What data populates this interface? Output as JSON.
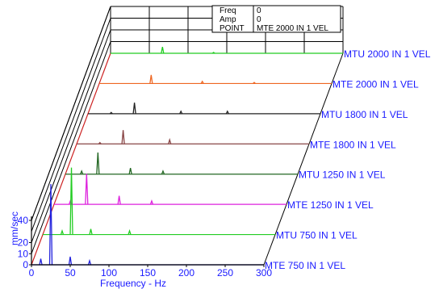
{
  "info_box": {
    "rows": [
      {
        "key": "Freq",
        "value": "0"
      },
      {
        "key": "Amp",
        "value": "0"
      },
      {
        "key": "POINT",
        "value": "MTE 2000 IN 1 VEL"
      }
    ]
  },
  "chart_data": {
    "type": "line",
    "style": "waterfall",
    "title": "",
    "xlabel": "Frequency - Hz",
    "ylabel": "mm/sec",
    "xlim": [
      0,
      300
    ],
    "ylim": [
      0,
      40
    ],
    "x_ticks": [
      "0",
      "50",
      "100",
      "150",
      "200",
      "250",
      "300"
    ],
    "y_ticks": [
      "0",
      "10",
      "20",
      "40"
    ],
    "grid": true,
    "series": [
      {
        "name": "MTE 750 IN 1 VEL",
        "color": "#2222dd",
        "peaks": [
          {
            "x": 25,
            "y": 40
          },
          {
            "x": 12,
            "y": 3
          },
          {
            "x": 50,
            "y": 4
          },
          {
            "x": 75,
            "y": 2
          }
        ]
      },
      {
        "name": "MTU 750 IN 1 VEL",
        "color": "#22cc22",
        "peaks": [
          {
            "x": 37,
            "y": 36
          },
          {
            "x": 25,
            "y": 2
          },
          {
            "x": 62,
            "y": 3
          },
          {
            "x": 112,
            "y": 2
          }
        ]
      },
      {
        "name": "MTE 1250 IN 1 VEL",
        "color": "#dd22dd",
        "peaks": [
          {
            "x": 42,
            "y": 18
          },
          {
            "x": 21,
            "y": 2
          },
          {
            "x": 84,
            "y": 5
          },
          {
            "x": 126,
            "y": 2
          }
        ]
      },
      {
        "name": "MTU 1250 IN 1 VEL",
        "color": "#226622",
        "peaks": [
          {
            "x": 42,
            "y": 14
          },
          {
            "x": 21,
            "y": 2
          },
          {
            "x": 84,
            "y": 4
          },
          {
            "x": 126,
            "y": 2
          }
        ]
      },
      {
        "name": "MTE 1800 IN 1 VEL",
        "color": "#884444",
        "peaks": [
          {
            "x": 60,
            "y": 10
          },
          {
            "x": 120,
            "y": 3
          },
          {
            "x": 30,
            "y": 1
          }
        ]
      },
      {
        "name": "MTU 1800 IN 1 VEL",
        "color": "#222222",
        "peaks": [
          {
            "x": 60,
            "y": 9
          },
          {
            "x": 120,
            "y": 2
          },
          {
            "x": 180,
            "y": 2
          },
          {
            "x": 30,
            "y": 1
          }
        ]
      },
      {
        "name": "MTE 2000 IN 1 VEL",
        "color": "#ee6622",
        "peaks": [
          {
            "x": 67,
            "y": 8
          },
          {
            "x": 133,
            "y": 2
          },
          {
            "x": 200,
            "y": 1
          }
        ]
      },
      {
        "name": "MTU 2000 IN 1 VEL",
        "color": "#22cc22",
        "peaks": [
          {
            "x": 67,
            "y": 7
          },
          {
            "x": 133,
            "y": 1
          }
        ]
      }
    ]
  }
}
